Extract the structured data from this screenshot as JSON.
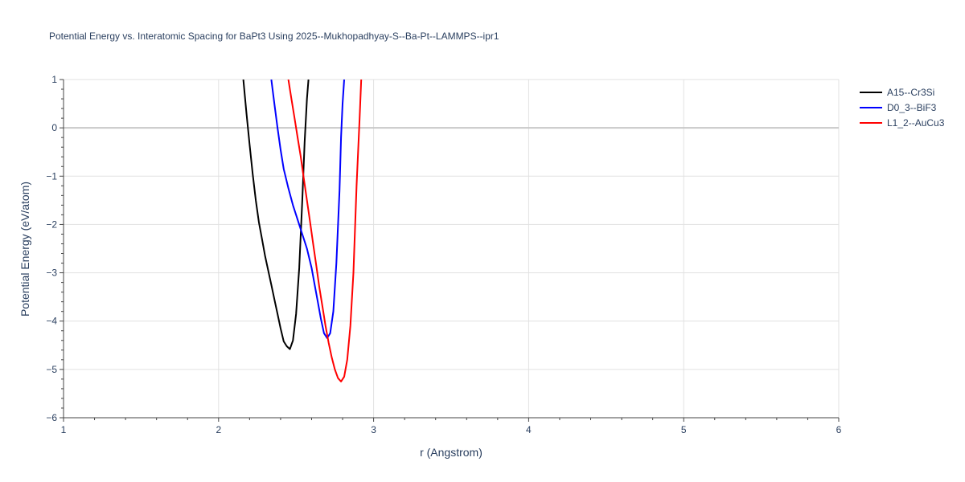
{
  "chart_data": {
    "type": "line",
    "title": "Potential Energy vs. Interatomic Spacing for BaPt3 Using 2025--Mukhopadhyay-S--Ba-Pt--LAMMPS--ipr1",
    "xlabel": "r (Angstrom)",
    "ylabel": "Potential Energy (eV/atom)",
    "xlim": [
      1,
      6
    ],
    "ylim": [
      -6,
      1
    ],
    "xticks": [
      1,
      2,
      3,
      4,
      5,
      6
    ],
    "yticks": [
      1,
      0,
      -1,
      -2,
      -3,
      -4,
      -5,
      -6
    ],
    "xtick_labels": [
      "1",
      "2",
      "3",
      "4",
      "5",
      "6"
    ],
    "ytick_labels": [
      "1",
      "0",
      "−1",
      "−2",
      "−3",
      "−4",
      "−5",
      "−6"
    ],
    "grid": true,
    "legend_position": "top-right",
    "series": [
      {
        "name": "A15--Cr3Si",
        "color": "#000000",
        "x": [
          2.16,
          2.18,
          2.2,
          2.22,
          2.24,
          2.26,
          2.28,
          2.3,
          2.32,
          2.34,
          2.36,
          2.38,
          2.4,
          2.42,
          2.44,
          2.46,
          2.48,
          2.5,
          2.52,
          2.54,
          2.555,
          2.57,
          2.58
        ],
        "y": [
          1.0,
          0.3,
          -0.35,
          -0.95,
          -1.5,
          -1.95,
          -2.3,
          -2.65,
          -2.95,
          -3.25,
          -3.55,
          -3.85,
          -4.15,
          -4.42,
          -4.52,
          -4.58,
          -4.4,
          -3.85,
          -2.9,
          -1.5,
          -0.3,
          0.6,
          1.0
        ]
      },
      {
        "name": "D0_3--BiF3",
        "color": "#0000ff",
        "x": [
          2.34,
          2.36,
          2.38,
          2.4,
          2.42,
          2.45,
          2.48,
          2.51,
          2.54,
          2.57,
          2.6,
          2.62,
          2.64,
          2.66,
          2.68,
          2.7,
          2.72,
          2.74,
          2.76,
          2.78,
          2.79,
          2.8,
          2.81
        ],
        "y": [
          1.0,
          0.5,
          0.0,
          -0.45,
          -0.85,
          -1.25,
          -1.6,
          -1.9,
          -2.2,
          -2.5,
          -2.9,
          -3.25,
          -3.6,
          -3.95,
          -4.25,
          -4.35,
          -4.25,
          -3.8,
          -2.8,
          -1.3,
          -0.2,
          0.5,
          1.0
        ]
      },
      {
        "name": "L1_2--AuCu3",
        "color": "#ff0000",
        "x": [
          2.45,
          2.47,
          2.49,
          2.51,
          2.53,
          2.55,
          2.57,
          2.59,
          2.61,
          2.63,
          2.65,
          2.67,
          2.69,
          2.71,
          2.73,
          2.75,
          2.77,
          2.79,
          2.81,
          2.83,
          2.85,
          2.87,
          2.89,
          2.91,
          2.92
        ],
        "y": [
          1.0,
          0.6,
          0.2,
          -0.2,
          -0.6,
          -1.05,
          -1.5,
          -1.95,
          -2.4,
          -2.85,
          -3.3,
          -3.7,
          -4.1,
          -4.45,
          -4.75,
          -5.0,
          -5.18,
          -5.25,
          -5.15,
          -4.8,
          -4.1,
          -3.0,
          -1.2,
          0.2,
          1.0
        ]
      }
    ]
  }
}
